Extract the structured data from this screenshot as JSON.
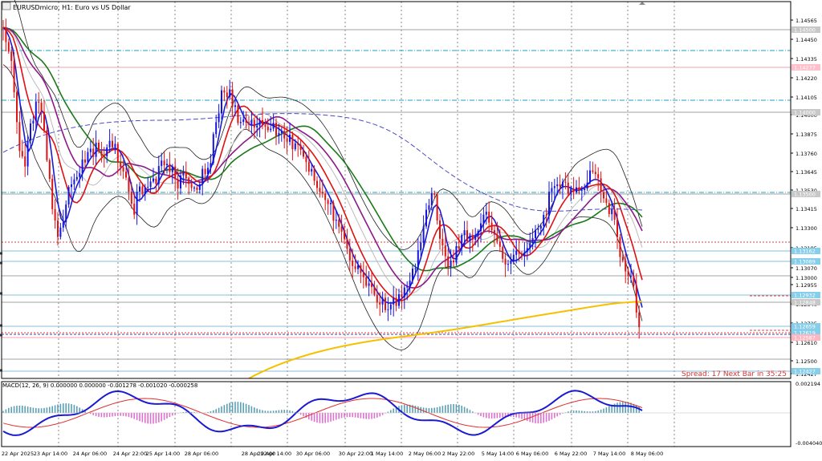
{
  "window": {
    "title": "EURUSDmicro, H1:  Euro vs US Dollar"
  },
  "spread_text": "Spread: 17  Next Bar in 35:25",
  "macd_title": "MACD(12, 26, 9) 0.000000 0.000000 -0.001278 -0.001020 -0.000258",
  "price_axis": {
    "ticks": [
      "1.14565",
      "1.14450",
      "1.14335",
      "1.14220",
      "1.14105",
      "1.14000",
      "1.13875",
      "1.13760",
      "1.13645",
      "1.13530",
      "1.13415",
      "1.13300",
      "1.13185",
      "1.13070",
      "1.13000",
      "1.12955",
      "1.12840",
      "1.12725",
      "1.12610",
      "1.12500",
      "1.12427"
    ],
    "labels": [
      {
        "text": "1.14500",
        "bg": "#c8c8c8",
        "fg": "#ffffff"
      },
      {
        "text": "1.14277",
        "bg": "#ffc0cb",
        "fg": "#ffffff"
      },
      {
        "text": "1.14000",
        "bg": "#c8c8c8",
        "fg": "#ffffff"
      },
      {
        "text": "1.13500",
        "bg": "#c8c8c8",
        "fg": "#ffffff"
      },
      {
        "text": "1.13162",
        "bg": "#87ceeb",
        "fg": "#ffffff"
      },
      {
        "text": "1.13089",
        "bg": "#87ceeb",
        "fg": "#ffffff"
      },
      {
        "text": "1.12932",
        "bg": "#87ceeb",
        "fg": "#ffffff"
      },
      {
        "text": "1.12848",
        "bg": "#c8c8c8",
        "fg": "#ffffff"
      },
      {
        "text": "1.12659",
        "bg": "#87ceeb",
        "fg": "#ffffff"
      },
      {
        "text": "1.12619",
        "bg": "#87ceeb",
        "fg": "#ffffff"
      },
      {
        "text": "1.12587",
        "bg": "#ffb6c1",
        "fg": "#ffffff"
      },
      {
        "text": "1.12427",
        "bg": "#87ceeb",
        "fg": "#ffffff"
      }
    ]
  },
  "macd_axis": {
    "top": "0.002194",
    "bottom": "-0.004040"
  },
  "time_axis": [
    "22 Apr 2025",
    "23 Apr 14:00",
    "24 Apr 06:00",
    "24 Apr 22:00",
    "25 Apr 14:00",
    "28 Apr 06:00",
    "28 Apr 22:00",
    "29 Apr 14:00",
    "30 Apr 06:00",
    "30 Apr 22:00",
    "1 May 14:00",
    "2 May 06:00",
    "2 May 22:00",
    "5 May 14:00",
    "6 May 06:00",
    "6 May 22:00",
    "7 May 14:00",
    "8 May 06:00"
  ],
  "colors": {
    "bull": "#1414dc",
    "bear": "#dc1414",
    "bands": "#202020",
    "ma_blue": "#1a1ad2",
    "ma_red": "#e01010",
    "ma_purple": "#8a1a8a",
    "ma_green": "#1a7a1a",
    "ma_gold": "#f5c000",
    "ma_dash": "#4a4ac8",
    "ma_gray": "#bbbbbb",
    "spread": "#e03030"
  }
}
